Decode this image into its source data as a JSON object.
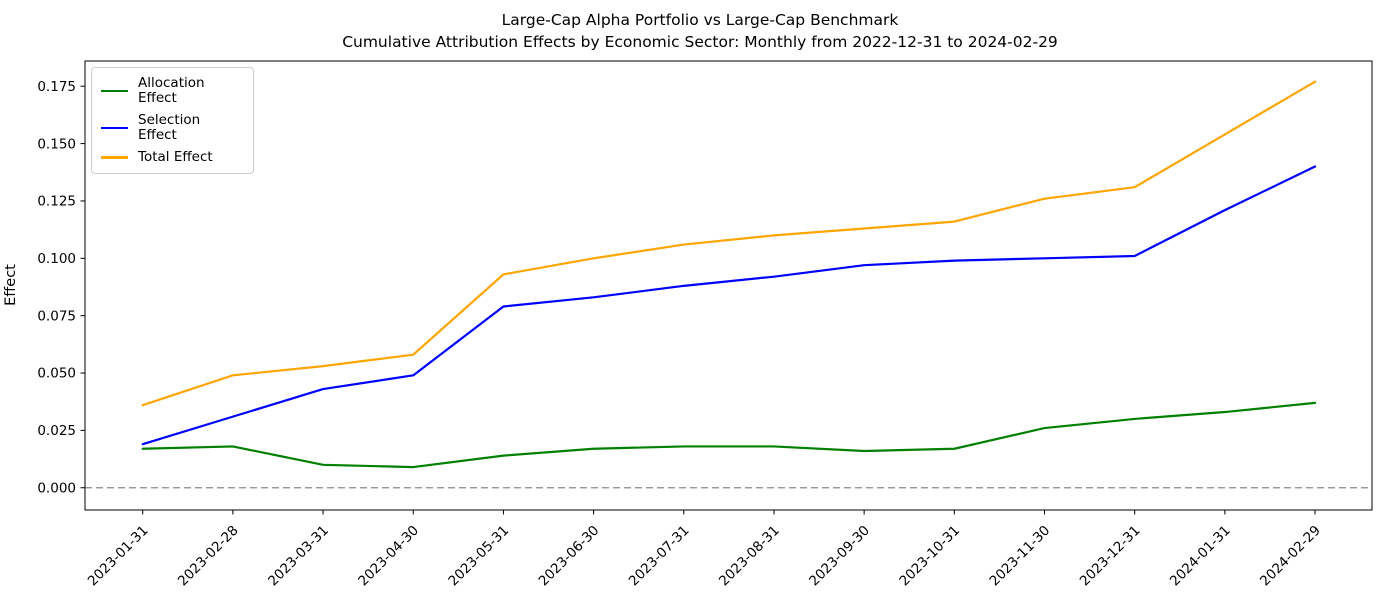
{
  "title_line1": "Large-Cap Alpha Portfolio vs Large-Cap Benchmark",
  "title_line2": "Cumulative Attribution Effects by Economic Sector: Monthly from 2022-12-31 to 2024-02-29",
  "ylabel": "Effect",
  "chart_data": {
    "type": "line",
    "title": "Large-Cap Alpha Portfolio vs Large-Cap Benchmark\nCumulative Attribution Effects by Economic Sector: Monthly from 2022-12-31 to 2024-02-29",
    "xlabel": "",
    "ylabel": "Effect",
    "grid": false,
    "legend_position": "upper left",
    "x": [
      "2023-01-31",
      "2023-02-28",
      "2023-03-31",
      "2023-04-30",
      "2023-05-31",
      "2023-06-30",
      "2023-07-31",
      "2023-08-31",
      "2023-09-30",
      "2023-10-31",
      "2023-11-30",
      "2023-12-31",
      "2024-01-31",
      "2024-02-29"
    ],
    "series": [
      {
        "name": "Allocation Effect",
        "color": "#008000",
        "values": [
          0.017,
          0.018,
          0.01,
          0.009,
          0.014,
          0.017,
          0.018,
          0.018,
          0.016,
          0.017,
          0.026,
          0.03,
          0.033,
          0.037
        ]
      },
      {
        "name": "Selection Effect",
        "color": "#0000ff",
        "values": [
          0.019,
          0.031,
          0.043,
          0.049,
          0.079,
          0.083,
          0.088,
          0.092,
          0.097,
          0.099,
          0.1,
          0.101,
          0.121,
          0.14
        ]
      },
      {
        "name": "Total Effect",
        "color": "#ffa500",
        "values": [
          0.036,
          0.049,
          0.053,
          0.058,
          0.093,
          0.1,
          0.106,
          0.11,
          0.113,
          0.116,
          0.126,
          0.131,
          0.154,
          0.177
        ]
      }
    ],
    "yticks_labels": [
      "0.000",
      "0.025",
      "0.050",
      "0.075",
      "0.100",
      "0.125",
      "0.150",
      "0.175"
    ],
    "ylim": [
      -0.0097,
      0.186
    ],
    "zero_line": {
      "value": 0,
      "style": "dashed",
      "color": "#8a8a8a"
    },
    "xtick_rotation": 45
  }
}
